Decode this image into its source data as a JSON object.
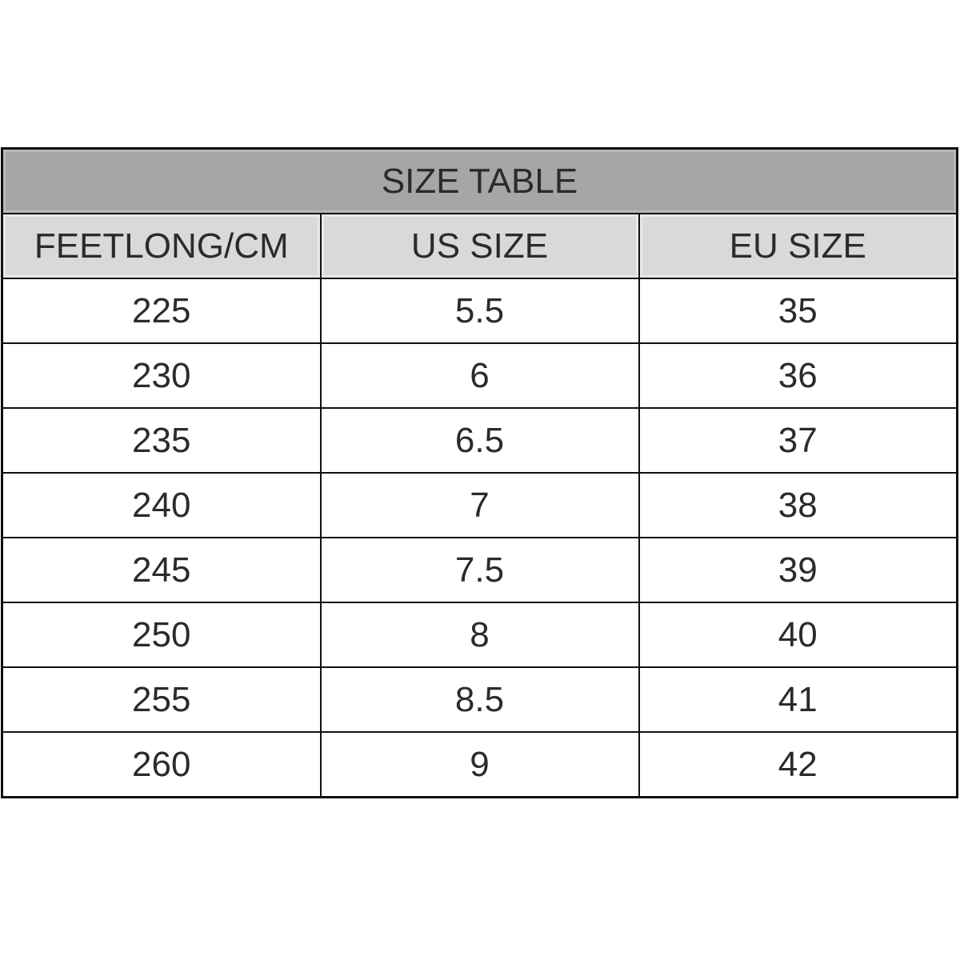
{
  "title": "SIZE TABLE",
  "columns": [
    "FEETLONG/CM",
    "US SIZE",
    "EU SIZE"
  ],
  "rows": [
    [
      "225",
      "5.5",
      "35"
    ],
    [
      "230",
      "6",
      "36"
    ],
    [
      "235",
      "6.5",
      "37"
    ],
    [
      "240",
      "7",
      "38"
    ],
    [
      "245",
      "7.5",
      "39"
    ],
    [
      "250",
      "8",
      "40"
    ],
    [
      "255",
      "8.5",
      "41"
    ],
    [
      "260",
      "9",
      "42"
    ]
  ],
  "colors": {
    "title_bg": "#a6a6a6",
    "header_bg": "#d9d9d9",
    "border": "#111111"
  }
}
